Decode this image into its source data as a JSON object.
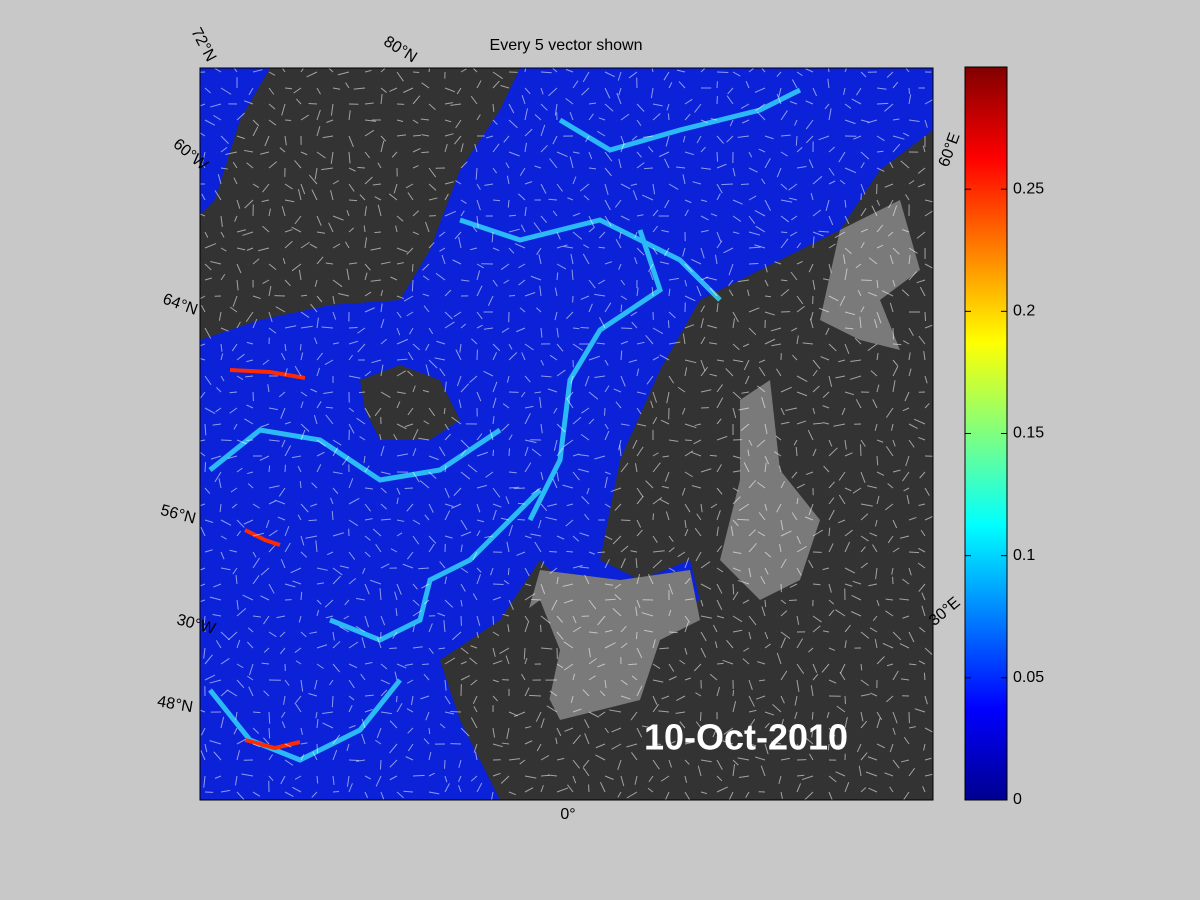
{
  "map": {
    "title": "Every 5 vector shown",
    "date_label": "10-Oct-2010",
    "graticule_labels": [
      "72°N",
      "80°N",
      "60°W",
      "64°N",
      "56°N",
      "30°W",
      "48°N",
      "0°",
      "30°E",
      "60°E"
    ],
    "colorbar": {
      "lim": [
        0,
        0.3
      ],
      "ticks": [
        0,
        0.05,
        0.1,
        0.15,
        0.2,
        0.25
      ]
    }
  }
}
